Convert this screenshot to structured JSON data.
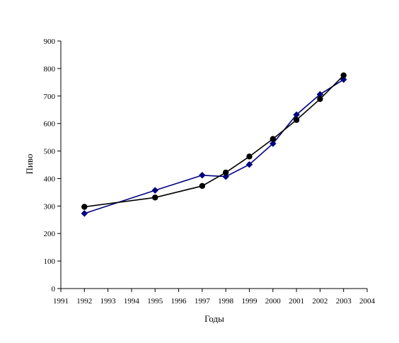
{
  "chart_data": {
    "type": "line",
    "title": "",
    "xlabel": "Годы",
    "ylabel": "Пиво",
    "xlim": [
      1991,
      2004
    ],
    "ylim": [
      0,
      900
    ],
    "x_ticks": [
      1991,
      1992,
      1993,
      1994,
      1995,
      1996,
      1997,
      1998,
      1999,
      2000,
      2001,
      2002,
      2003,
      2004
    ],
    "y_ticks": [
      0,
      100,
      200,
      300,
      400,
      500,
      600,
      700,
      800,
      900
    ],
    "grid": false,
    "legend": "none",
    "series": [
      {
        "color": "#000080",
        "marker": "diamond",
        "points": [
          {
            "x": 1992,
            "y": 273
          },
          {
            "x": 1995,
            "y": 357
          },
          {
            "x": 1997,
            "y": 412
          },
          {
            "x": 1998,
            "y": 407
          },
          {
            "x": 1999,
            "y": 451
          },
          {
            "x": 2000,
            "y": 527
          },
          {
            "x": 2001,
            "y": 632
          },
          {
            "x": 2002,
            "y": 706
          },
          {
            "x": 2003,
            "y": 760
          }
        ]
      },
      {
        "color": "#000000",
        "marker": "circle",
        "points": [
          {
            "x": 1992,
            "y": 297
          },
          {
            "x": 1995,
            "y": 331
          },
          {
            "x": 1997,
            "y": 373
          },
          {
            "x": 1998,
            "y": 422
          },
          {
            "x": 1999,
            "y": 480
          },
          {
            "x": 2000,
            "y": 544
          },
          {
            "x": 2001,
            "y": 613
          },
          {
            "x": 2002,
            "y": 689
          },
          {
            "x": 2003,
            "y": 775
          }
        ]
      }
    ]
  }
}
